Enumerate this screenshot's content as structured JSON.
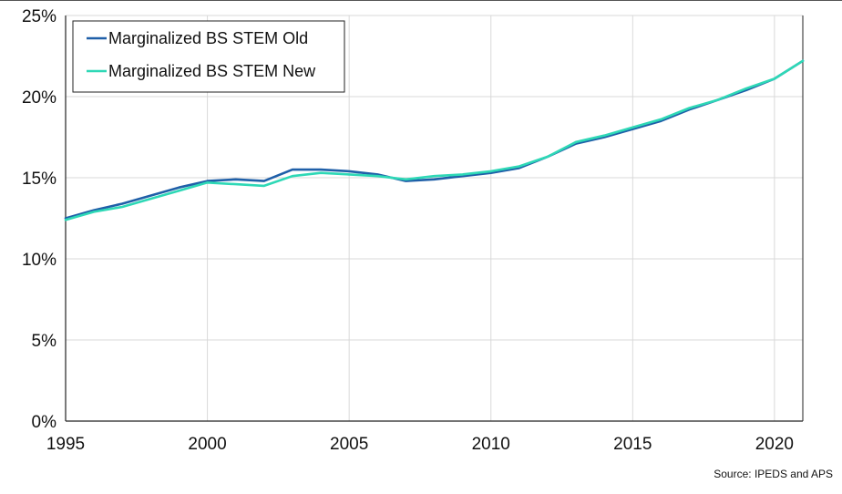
{
  "chart_data": {
    "type": "line",
    "title": "",
    "xlabel": "",
    "ylabel": "",
    "xlim": [
      1995,
      2021
    ],
    "ylim": [
      0,
      25
    ],
    "x_ticks": [
      1995,
      2000,
      2005,
      2010,
      2015,
      2020
    ],
    "y_ticks": [
      0,
      5,
      10,
      15,
      20,
      25
    ],
    "y_tick_labels": [
      "0%",
      "5%",
      "10%",
      "15%",
      "20%",
      "25%"
    ],
    "grid": true,
    "legend_position": "top-left",
    "x": [
      1995,
      1996,
      1997,
      1998,
      1999,
      2000,
      2001,
      2002,
      2003,
      2004,
      2005,
      2006,
      2007,
      2008,
      2009,
      2010,
      2011,
      2012,
      2013,
      2014,
      2015,
      2016,
      2017,
      2018,
      2019,
      2020,
      2021
    ],
    "series": [
      {
        "name": "Marginalized BS STEM Old",
        "color": "#1f5fa8",
        "values": [
          12.5,
          13.0,
          13.4,
          13.9,
          14.4,
          14.8,
          14.9,
          14.8,
          15.5,
          15.5,
          15.4,
          15.2,
          14.8,
          14.9,
          15.1,
          15.3,
          15.6,
          16.3,
          17.1,
          17.5,
          18.0,
          18.5,
          19.2,
          19.8,
          20.4,
          21.1,
          22.2
        ]
      },
      {
        "name": "Marginalized BS STEM New",
        "color": "#2ed8b6",
        "values": [
          12.4,
          12.9,
          13.2,
          13.7,
          14.2,
          14.7,
          14.6,
          14.5,
          15.1,
          15.3,
          15.2,
          15.1,
          14.9,
          15.1,
          15.2,
          15.4,
          15.7,
          16.3,
          17.2,
          17.6,
          18.1,
          18.6,
          19.3,
          19.8,
          20.5,
          21.1,
          22.2
        ]
      }
    ]
  },
  "source_text": "Source: IPEDS and APS"
}
